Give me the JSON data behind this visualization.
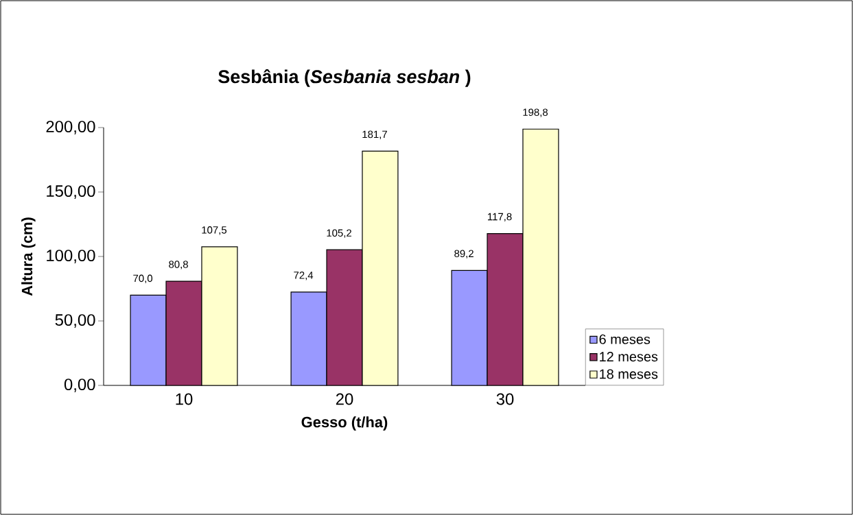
{
  "chart_data": {
    "type": "bar",
    "title": "Sesbânia (*Sesbania sesban* )",
    "xlabel": "Gesso (t/ha)",
    "ylabel": "Altura (cm)",
    "categories": [
      "10",
      "20",
      "30"
    ],
    "series": [
      {
        "name": "6 meses",
        "color": "#9999ff",
        "values": [
          70.0,
          72.4,
          89.2
        ],
        "value_labels": [
          "70,0",
          "72,4",
          "89,2"
        ]
      },
      {
        "name": "12 meses",
        "color": "#993366",
        "values": [
          80.8,
          105.2,
          117.8
        ],
        "value_labels": [
          "80,8",
          "105,2",
          "117,8"
        ]
      },
      {
        "name": "18 meses",
        "color": "#ffffcc",
        "values": [
          107.5,
          181.7,
          198.8
        ],
        "value_labels": [
          "107,5",
          "181,7",
          "198,8"
        ]
      }
    ],
    "ylim": [
      0,
      200
    ],
    "yticks": [
      {
        "value": 0,
        "label": "0,00"
      },
      {
        "value": 50,
        "label": "50,00"
      },
      {
        "value": 100,
        "label": "100,00"
      },
      {
        "value": 150,
        "label": "150,00"
      },
      {
        "value": 200,
        "label": "200,00"
      }
    ],
    "grid": false,
    "legend": "right"
  }
}
